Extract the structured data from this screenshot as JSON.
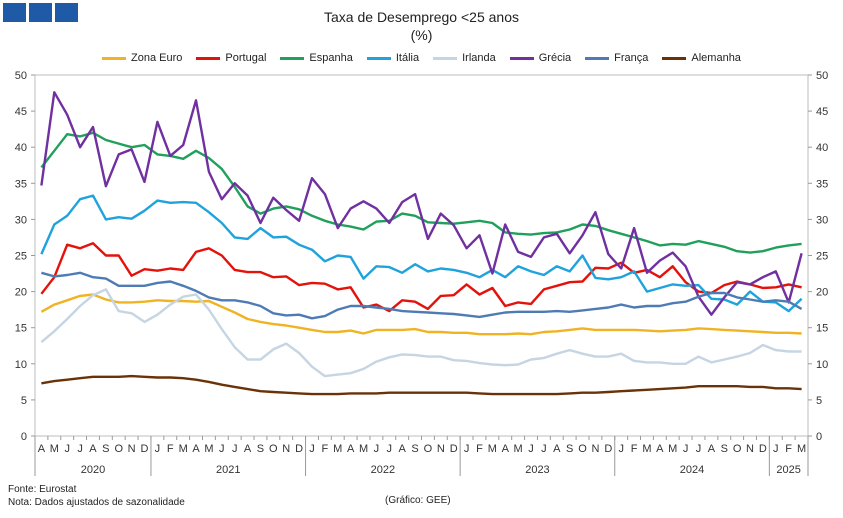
{
  "chart_data": {
    "type": "line",
    "title": "Taxa de Desemprego <25 anos",
    "subtitle": "(%)",
    "ylim": [
      0,
      50
    ],
    "yticks": [
      0,
      5,
      10,
      15,
      20,
      25,
      30,
      35,
      40,
      45,
      50
    ],
    "x": [
      "A",
      "M",
      "J",
      "J",
      "A",
      "S",
      "O",
      "N",
      "D",
      "J",
      "F",
      "M",
      "A",
      "M",
      "J",
      "J",
      "A",
      "S",
      "O",
      "N",
      "D",
      "J",
      "F",
      "M",
      "A",
      "M",
      "J",
      "J",
      "A",
      "S",
      "O",
      "N",
      "D",
      "J",
      "F",
      "M",
      "A",
      "M",
      "J",
      "J",
      "A",
      "S",
      "O",
      "N",
      "D",
      "J",
      "F",
      "M",
      "A",
      "M",
      "J",
      "J",
      "A",
      "S",
      "O",
      "N",
      "D",
      "J",
      "F",
      "M"
    ],
    "years": [
      {
        "label": "2020",
        "start": 0,
        "end": 9
      },
      {
        "label": "2021",
        "start": 9,
        "end": 21
      },
      {
        "label": "2022",
        "start": 21,
        "end": 33
      },
      {
        "label": "2023",
        "start": 33,
        "end": 45
      },
      {
        "label": "2024",
        "start": 45,
        "end": 57
      },
      {
        "label": "2025",
        "start": 57,
        "end": 60
      }
    ],
    "series": [
      {
        "name": "Zona Euro",
        "color": "#f0b323",
        "values": [
          17.2,
          18.2,
          18.8,
          19.4,
          19.6,
          18.9,
          18.5,
          18.5,
          18.6,
          18.8,
          18.7,
          18.7,
          18.6,
          18.7,
          17.9,
          17.1,
          16.2,
          15.8,
          15.5,
          15.3,
          15.0,
          14.7,
          14.4,
          14.4,
          14.6,
          14.2,
          14.7,
          14.7,
          14.7,
          14.8,
          14.4,
          14.4,
          14.3,
          14.3,
          14.1,
          14.1,
          14.1,
          14.2,
          14.1,
          14.4,
          14.5,
          14.7,
          14.9,
          14.7,
          14.7,
          14.7,
          14.7,
          14.6,
          14.5,
          14.6,
          14.7,
          14.9,
          14.8,
          14.7,
          14.6,
          14.5,
          14.4,
          14.3,
          14.3,
          14.2
        ]
      },
      {
        "name": "Portugal",
        "color": "#e3120b",
        "values": [
          19.7,
          22.0,
          26.5,
          26.0,
          26.7,
          25.0,
          25.0,
          22.2,
          23.1,
          22.9,
          23.2,
          23.0,
          25.5,
          26.0,
          25.0,
          23.0,
          22.7,
          22.7,
          22.0,
          22.1,
          20.9,
          21.2,
          21.1,
          20.3,
          20.6,
          17.8,
          18.2,
          17.3,
          18.8,
          18.6,
          17.6,
          19.4,
          19.5,
          21.0,
          19.6,
          20.5,
          18.0,
          18.5,
          18.3,
          20.3,
          20.8,
          21.3,
          21.4,
          23.3,
          23.2,
          24.0,
          22.6,
          23.0,
          22.0,
          23.5,
          21.3,
          20.0,
          19.8,
          20.9,
          21.4,
          21.0,
          20.5,
          20.6,
          21.0,
          20.6
        ]
      },
      {
        "name": "Espanha",
        "color": "#20a05a",
        "values": [
          37.2,
          39.5,
          41.8,
          41.5,
          42.0,
          41.0,
          40.5,
          40.0,
          40.3,
          39.0,
          38.8,
          38.4,
          39.5,
          38.5,
          37.0,
          34.5,
          31.8,
          30.8,
          31.5,
          31.8,
          31.4,
          30.5,
          29.8,
          29.3,
          29.0,
          28.6,
          29.7,
          29.8,
          30.8,
          30.5,
          29.6,
          29.5,
          29.4,
          29.6,
          29.8,
          29.5,
          28.2,
          28.0,
          27.9,
          28.1,
          28.2,
          28.6,
          29.3,
          29.1,
          28.5,
          28.0,
          27.5,
          27.0,
          26.4,
          26.6,
          26.5,
          27.0,
          26.6,
          26.2,
          25.6,
          25.4,
          25.6,
          26.1,
          26.4,
          26.6
        ]
      },
      {
        "name": "Itália",
        "color": "#1fa3dc",
        "values": [
          25.2,
          29.3,
          30.5,
          32.8,
          33.3,
          30.0,
          30.3,
          30.1,
          31.2,
          32.6,
          32.3,
          32.4,
          32.3,
          31.0,
          29.5,
          27.5,
          27.3,
          28.8,
          27.5,
          27.6,
          26.5,
          25.8,
          24.2,
          25.0,
          24.8,
          21.8,
          23.5,
          23.4,
          22.6,
          23.8,
          22.8,
          23.2,
          23.0,
          22.6,
          22.0,
          23.0,
          22.0,
          23.5,
          22.8,
          22.3,
          23.5,
          22.8,
          25.0,
          21.9,
          21.7,
          22.0,
          22.8,
          20.0,
          20.5,
          21.0,
          20.8,
          20.9,
          19.0,
          18.9,
          18.2,
          20.0,
          18.6,
          18.5,
          17.3,
          19.0
        ]
      },
      {
        "name": "Irlanda",
        "color": "#c6d5e3",
        "values": [
          13.0,
          14.5,
          16.2,
          18.0,
          19.5,
          20.3,
          17.3,
          17.0,
          15.8,
          16.8,
          18.2,
          19.3,
          19.6,
          17.5,
          14.8,
          12.3,
          10.6,
          10.6,
          12.0,
          12.8,
          11.5,
          9.6,
          8.3,
          8.5,
          8.7,
          9.3,
          10.3,
          10.9,
          11.3,
          11.2,
          11.0,
          11.0,
          10.5,
          10.4,
          10.1,
          9.9,
          9.8,
          9.9,
          10.6,
          10.8,
          11.4,
          11.9,
          11.4,
          11.0,
          11.0,
          11.4,
          10.4,
          10.2,
          10.2,
          10.0,
          10.0,
          11.0,
          10.2,
          10.6,
          11.0,
          11.5,
          12.6,
          11.9,
          11.7,
          11.7
        ]
      },
      {
        "name": "Grécia",
        "color": "#7030a0",
        "values": [
          34.7,
          47.6,
          44.5,
          40.0,
          42.8,
          34.6,
          39.0,
          39.7,
          35.2,
          43.5,
          38.8,
          40.3,
          46.5,
          36.6,
          32.8,
          35.0,
          33.3,
          29.5,
          33.0,
          31.3,
          29.8,
          35.7,
          33.5,
          28.8,
          31.5,
          32.5,
          31.5,
          29.5,
          32.4,
          33.5,
          27.3,
          30.8,
          29.2,
          26.0,
          27.8,
          22.5,
          29.3,
          25.5,
          24.8,
          27.5,
          28.0,
          25.3,
          27.8,
          31.0,
          25.2,
          23.2,
          28.8,
          22.6,
          24.3,
          25.4,
          23.5,
          19.3,
          16.8,
          19.2,
          21.3,
          21.0,
          22.0,
          22.8,
          18.5,
          25.3
        ]
      },
      {
        "name": "França",
        "color": "#4f7bb5",
        "values": [
          22.6,
          22.1,
          22.3,
          22.6,
          22.0,
          21.8,
          20.8,
          20.8,
          20.8,
          21.2,
          21.4,
          20.8,
          20.1,
          19.2,
          18.8,
          18.8,
          18.5,
          18.0,
          17.0,
          16.7,
          16.8,
          16.3,
          16.6,
          17.5,
          18.0,
          18.0,
          17.8,
          17.6,
          17.3,
          17.2,
          17.1,
          17.0,
          16.9,
          16.7,
          16.5,
          16.8,
          17.1,
          17.2,
          17.2,
          17.2,
          17.3,
          17.2,
          17.4,
          17.6,
          17.8,
          18.2,
          17.8,
          18.0,
          18.0,
          18.4,
          18.6,
          19.3,
          19.8,
          19.8,
          19.2,
          18.9,
          18.6,
          18.8,
          18.6,
          17.6
        ]
      },
      {
        "name": "Alemanha",
        "color": "#6b3208",
        "values": [
          7.3,
          7.6,
          7.8,
          8.0,
          8.2,
          8.2,
          8.2,
          8.3,
          8.2,
          8.1,
          8.1,
          8.0,
          7.8,
          7.5,
          7.1,
          6.8,
          6.5,
          6.2,
          6.1,
          6.0,
          5.9,
          5.8,
          5.8,
          5.8,
          5.9,
          5.9,
          5.9,
          6.0,
          6.0,
          6.0,
          6.0,
          6.0,
          6.0,
          6.0,
          5.9,
          5.8,
          5.8,
          5.8,
          5.8,
          5.8,
          5.8,
          5.9,
          6.0,
          6.0,
          6.1,
          6.2,
          6.3,
          6.4,
          6.5,
          6.6,
          6.7,
          6.9,
          6.9,
          6.9,
          6.9,
          6.8,
          6.8,
          6.6,
          6.6,
          6.5
        ]
      }
    ]
  },
  "footer": {
    "source": "Fonte: Eurostat",
    "note": "Nota: Dados ajustados de sazonalidade",
    "credit": "(Gráfico: GEE)"
  }
}
